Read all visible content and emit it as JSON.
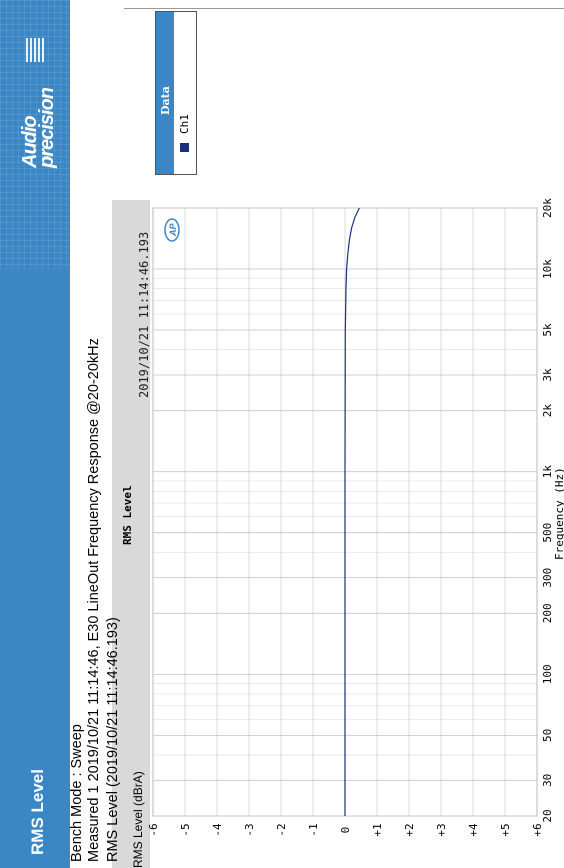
{
  "banner": {
    "title": "RMS Level",
    "logo_line1": "Audio",
    "logo_line2": "precision"
  },
  "header": {
    "line1": "Bench Mode : Sweep",
    "line2": "Measured 1     2019/10/21 11:14:46, E30 LineOut Frequency Response @20-20kHz",
    "line3": "RMS Level (2019/10/21 11:14:46.193)"
  },
  "legend": {
    "title": "Data",
    "channel": "Ch1",
    "color": "#1a2f7a"
  },
  "chart_data": {
    "type": "line",
    "title": "RMS Level",
    "timestamp": "2019/10/21 11:14:46.193",
    "xlabel": "Frequency (Hz)",
    "ylabel": "RMS Level (dBrA)",
    "xscale": "log",
    "xlim": [
      20,
      20000
    ],
    "ylim": [
      -6,
      6
    ],
    "x_ticks": [
      20,
      30,
      50,
      100,
      200,
      300,
      500,
      1000,
      2000,
      3000,
      5000,
      10000,
      20000
    ],
    "x_tick_labels": [
      "20",
      "30",
      "50",
      "100",
      "200",
      "300",
      "500",
      "1k",
      "2k",
      "3k",
      "5k",
      "10k",
      "20k"
    ],
    "y_ticks": [
      -6,
      -5,
      -4,
      -3,
      -2,
      -1,
      0,
      1,
      2,
      3,
      4,
      5,
      6
    ],
    "y_tick_labels": [
      "-6",
      "-5",
      "-4",
      "-3",
      "-2",
      "-1",
      "0",
      "+1",
      "+2",
      "+3",
      "+4",
      "+5",
      "+6"
    ],
    "grid": true,
    "series": [
      {
        "name": "Ch1",
        "x": [
          20,
          50,
          100,
          500,
          1000,
          5000,
          8000,
          10000,
          12000,
          14000,
          16000,
          18000,
          20000
        ],
        "y": [
          0,
          0,
          0,
          0,
          0,
          0.01,
          0.03,
          0.05,
          0.09,
          0.14,
          0.21,
          0.31,
          0.45
        ]
      }
    ]
  }
}
